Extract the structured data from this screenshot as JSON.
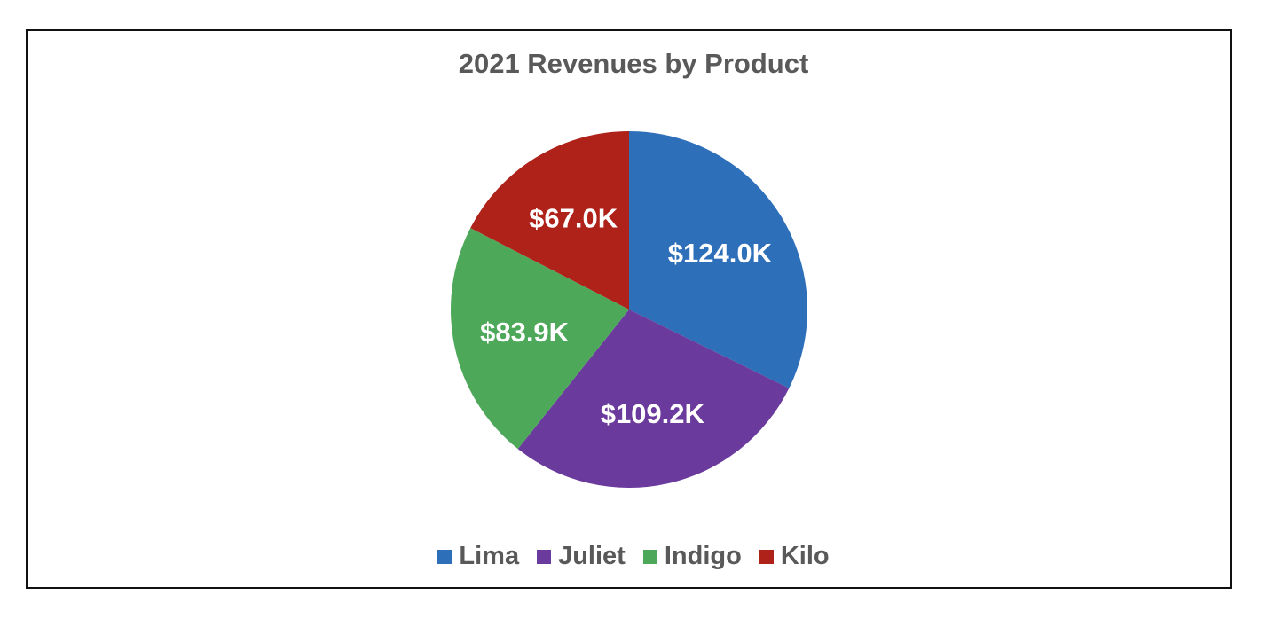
{
  "chart_data": {
    "type": "pie",
    "title": "2021 Revenues by Product",
    "categories": [
      "Lima",
      "Juliet",
      "Indigo",
      "Kilo"
    ],
    "values": [
      124.0,
      109.2,
      83.9,
      67.0
    ],
    "value_labels": [
      "$124.0K",
      "$109.2K",
      "$83.9K",
      "$67.0K"
    ],
    "units": "thousands USD",
    "colors": [
      "#2E6FBA",
      "#6A3A9C",
      "#4EA85A",
      "#AE221A"
    ],
    "start_angle": "12 o'clock",
    "direction": "clockwise",
    "legend_position": "bottom"
  }
}
